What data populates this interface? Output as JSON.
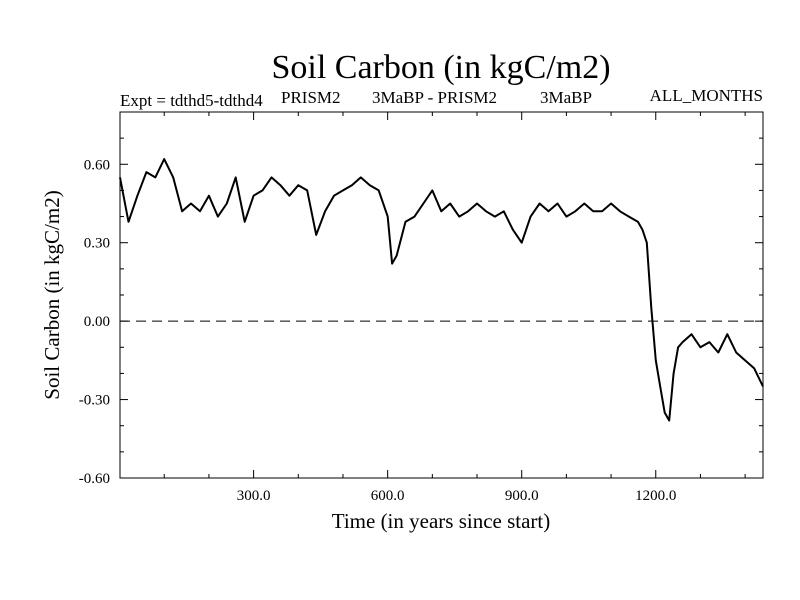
{
  "chart_data": {
    "type": "line",
    "title": "Soil Carbon (in kgC/m2)",
    "subtitle_left": "Expt = tdthd5-tdthd4",
    "subtitle_mid1": "PRISM2",
    "subtitle_mid2": "3MaBP - PRISM2",
    "subtitle_mid3": "3MaBP",
    "subtitle_right": "ALL_MONTHS",
    "xlabel": "Time (in years since start)",
    "ylabel": "Soil Carbon (in kgC/m2)",
    "xlim": [
      1,
      1440
    ],
    "ylim": [
      -0.6,
      0.8
    ],
    "xticks": [
      300,
      600,
      900,
      1200
    ],
    "xtick_labels": [
      "300.0",
      "600.0",
      "900.0",
      "1200.0"
    ],
    "yticks": [
      -0.6,
      -0.3,
      0.0,
      0.3,
      0.6
    ],
    "ytick_labels": [
      "-0.60",
      "-0.30",
      "0.00",
      "0.30",
      "0.60"
    ],
    "zero_line": "dashed",
    "grid": false,
    "series": [
      {
        "color": "#000000",
        "x": [
          1,
          20,
          40,
          60,
          80,
          100,
          120,
          140,
          160,
          180,
          200,
          220,
          240,
          260,
          280,
          300,
          320,
          340,
          360,
          380,
          400,
          420,
          440,
          460,
          480,
          500,
          520,
          540,
          560,
          580,
          600,
          610,
          620,
          640,
          660,
          680,
          700,
          720,
          740,
          760,
          780,
          800,
          820,
          840,
          860,
          880,
          900,
          920,
          940,
          960,
          980,
          1000,
          1020,
          1040,
          1060,
          1080,
          1100,
          1120,
          1140,
          1160,
          1170,
          1180,
          1190,
          1200,
          1210,
          1220,
          1230,
          1240,
          1250,
          1260,
          1280,
          1300,
          1320,
          1340,
          1360,
          1380,
          1400,
          1420,
          1440
        ],
        "y": [
          0.55,
          0.38,
          0.48,
          0.57,
          0.55,
          0.62,
          0.55,
          0.42,
          0.45,
          0.42,
          0.48,
          0.4,
          0.45,
          0.55,
          0.38,
          0.48,
          0.5,
          0.55,
          0.52,
          0.48,
          0.52,
          0.5,
          0.33,
          0.42,
          0.48,
          0.5,
          0.52,
          0.55,
          0.52,
          0.5,
          0.4,
          0.22,
          0.25,
          0.38,
          0.4,
          0.45,
          0.5,
          0.42,
          0.45,
          0.4,
          0.42,
          0.45,
          0.42,
          0.4,
          0.42,
          0.35,
          0.3,
          0.4,
          0.45,
          0.42,
          0.45,
          0.4,
          0.42,
          0.45,
          0.42,
          0.42,
          0.45,
          0.42,
          0.4,
          0.38,
          0.35,
          0.3,
          0.05,
          -0.15,
          -0.25,
          -0.35,
          -0.38,
          -0.2,
          -0.1,
          -0.08,
          -0.05,
          -0.1,
          -0.08,
          -0.12,
          -0.05,
          -0.12,
          -0.15,
          -0.18,
          -0.25
        ]
      }
    ]
  }
}
